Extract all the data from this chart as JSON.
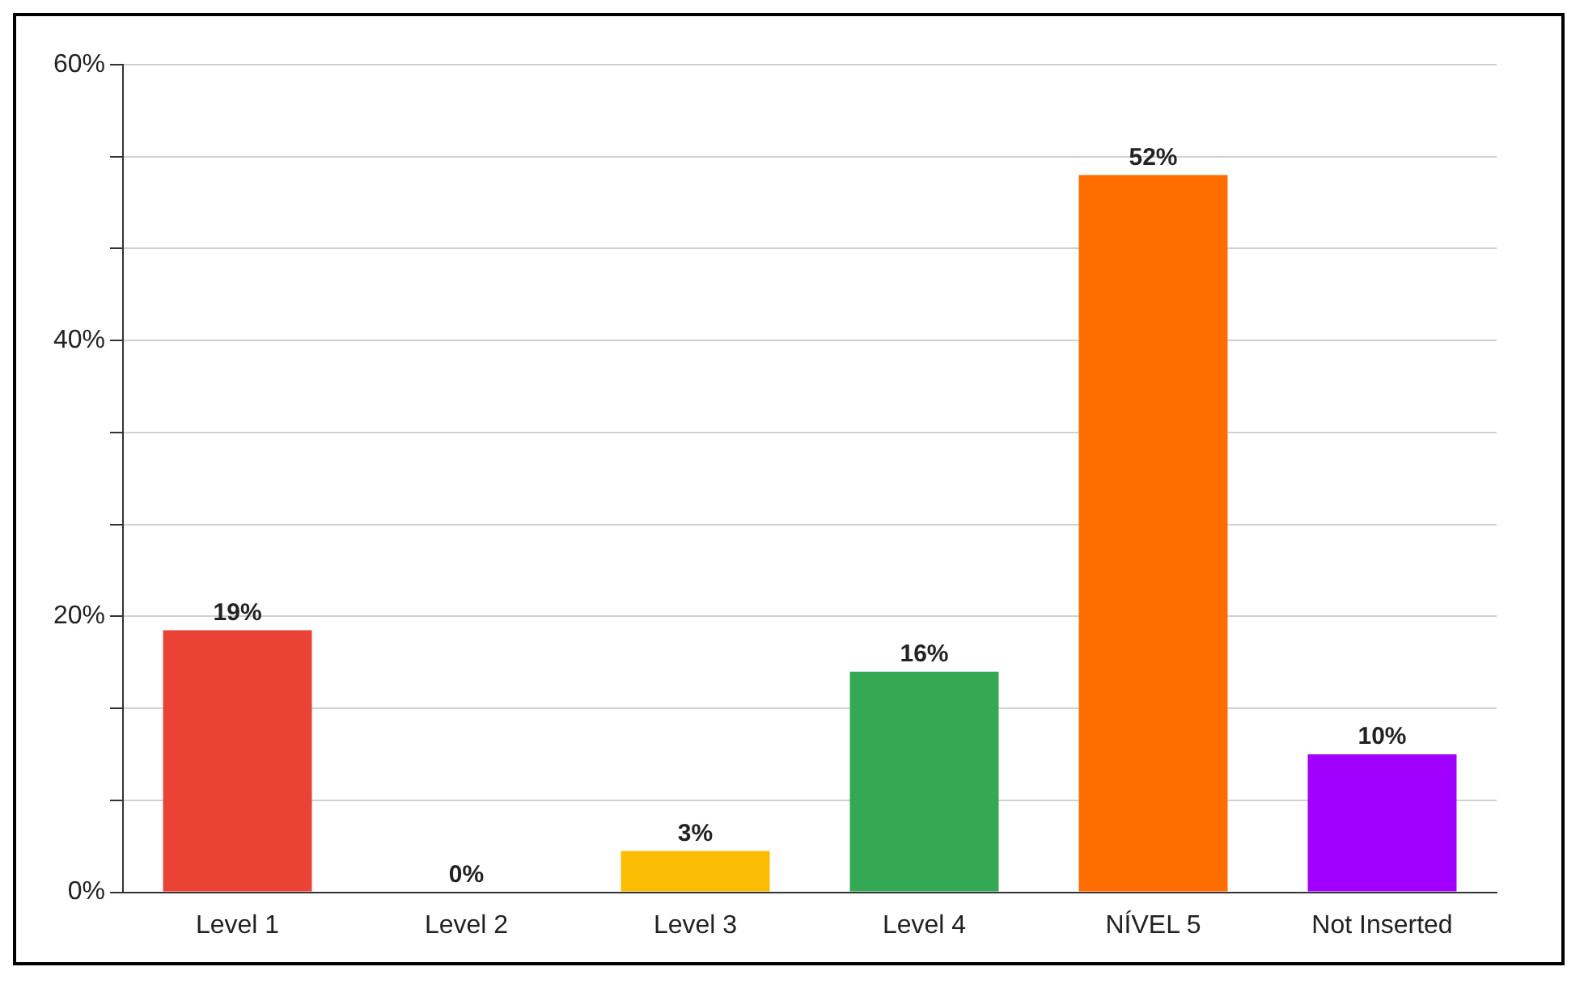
{
  "chart_data": {
    "type": "bar",
    "categories": [
      "Level 1",
      "Level 2",
      "Level 3",
      "Level 4",
      "NÍVEL 5",
      "Not Inserted"
    ],
    "values": [
      19,
      0,
      3,
      16,
      52,
      10
    ],
    "colors": [
      "#ea4335",
      "#6ba2f7",
      "#fbbc04",
      "#34a853",
      "#ff6d01",
      "#a100ff"
    ],
    "value_labels": [
      "19%",
      "0%",
      "3%",
      "16%",
      "52%",
      "10%"
    ],
    "ylim": [
      0,
      60
    ],
    "yticks": [
      {
        "value": 0,
        "label": "0%"
      },
      {
        "value": 6.67,
        "label": null
      },
      {
        "value": 13.33,
        "label": null
      },
      {
        "value": 20,
        "label": "20%"
      },
      {
        "value": 26.67,
        "label": null
      },
      {
        "value": 33.33,
        "label": null
      },
      {
        "value": 40,
        "label": "40%"
      },
      {
        "value": 46.67,
        "label": null
      },
      {
        "value": 53.33,
        "label": null
      },
      {
        "value": 60,
        "label": "60%"
      }
    ],
    "grid": "y",
    "legend": false
  }
}
